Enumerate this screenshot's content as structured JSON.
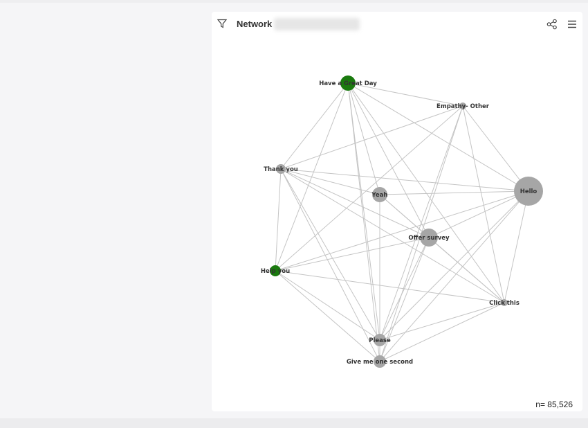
{
  "header": {
    "title": "Network",
    "filter_icon": "filter-icon",
    "share_icon": "share-icon",
    "menu_icon": "hamburger-menu-icon"
  },
  "footer": {
    "n_label": "n= 85,526"
  },
  "colors": {
    "highlight": "#1a7a0e",
    "node": "#a6a6a6",
    "edge": "#c4c4c4"
  },
  "chart_data": {
    "type": "network",
    "nodes": [
      {
        "id": "hgd",
        "label": "Have a Great Day",
        "highlight": true
      },
      {
        "id": "emp",
        "label": "Empathy- Other",
        "highlight": false
      },
      {
        "id": "thx",
        "label": "Thank you",
        "highlight": false
      },
      {
        "id": "yeah",
        "label": "Yeah",
        "highlight": false
      },
      {
        "id": "hello",
        "label": "Hello",
        "highlight": false
      },
      {
        "id": "offer",
        "label": "Offer survey",
        "highlight": false
      },
      {
        "id": "help",
        "label": "Help you",
        "highlight": true
      },
      {
        "id": "click",
        "label": "Click this",
        "highlight": false
      },
      {
        "id": "please",
        "label": "Please",
        "highlight": false
      },
      {
        "id": "give",
        "label": "Give me one second",
        "highlight": false
      }
    ],
    "edges": [
      [
        "hgd",
        "emp"
      ],
      [
        "hgd",
        "hello"
      ],
      [
        "hgd",
        "click"
      ],
      [
        "hgd",
        "offer"
      ],
      [
        "hgd",
        "please"
      ],
      [
        "hgd",
        "give"
      ],
      [
        "hgd",
        "thx"
      ],
      [
        "hgd",
        "help"
      ],
      [
        "hgd",
        "yeah"
      ],
      [
        "emp",
        "thx"
      ],
      [
        "emp",
        "help"
      ],
      [
        "emp",
        "please"
      ],
      [
        "emp",
        "give"
      ],
      [
        "emp",
        "hello"
      ],
      [
        "emp",
        "click"
      ],
      [
        "thx",
        "hello"
      ],
      [
        "thx",
        "offer"
      ],
      [
        "thx",
        "click"
      ],
      [
        "thx",
        "please"
      ],
      [
        "thx",
        "give"
      ],
      [
        "thx",
        "help"
      ],
      [
        "thx",
        "yeah"
      ],
      [
        "yeah",
        "hello"
      ],
      [
        "yeah",
        "offer"
      ],
      [
        "yeah",
        "click"
      ],
      [
        "yeah",
        "please"
      ],
      [
        "hello",
        "help"
      ],
      [
        "hello",
        "offer"
      ],
      [
        "hello",
        "please"
      ],
      [
        "hello",
        "give"
      ],
      [
        "hello",
        "click"
      ],
      [
        "offer",
        "help"
      ],
      [
        "offer",
        "click"
      ],
      [
        "offer",
        "please"
      ],
      [
        "offer",
        "give"
      ],
      [
        "help",
        "click"
      ],
      [
        "help",
        "please"
      ],
      [
        "help",
        "give"
      ],
      [
        "click",
        "please"
      ],
      [
        "click",
        "give"
      ],
      [
        "please",
        "give"
      ]
    ]
  }
}
